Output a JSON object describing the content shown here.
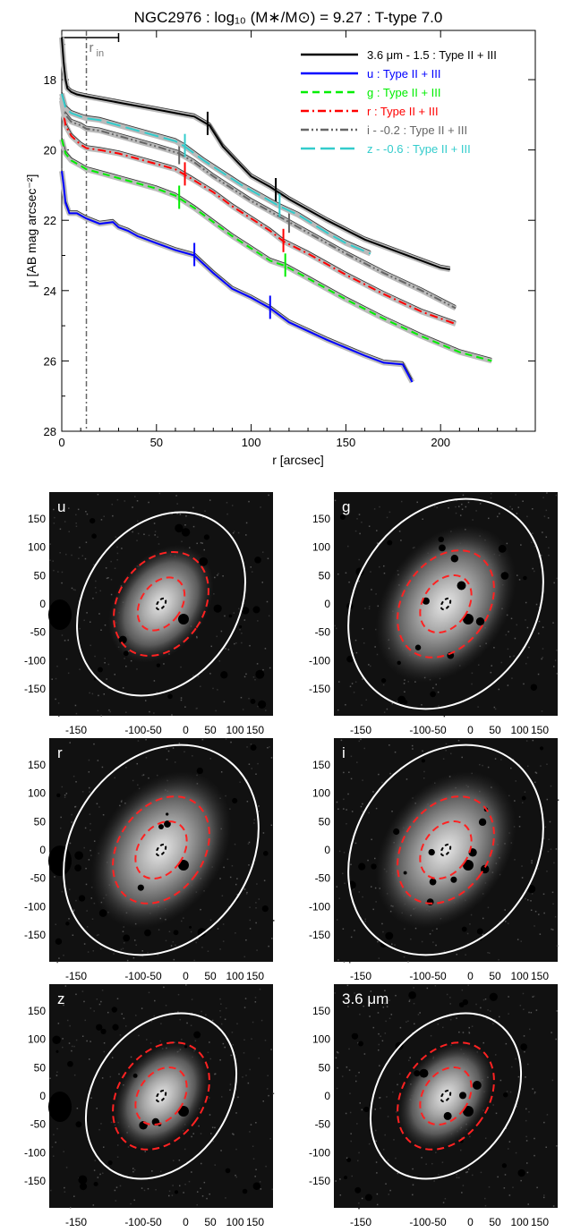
{
  "chart_data": {
    "type": "line",
    "title": "NGC2976 : log₁₀ (M∗/M⊙) = 9.27 : T-type 7.0",
    "xlabel": "r [arcsec]",
    "ylabel": "μ [AB mag arcsec⁻²]",
    "xlim": [
      0,
      250
    ],
    "ylim": [
      28,
      16.6
    ],
    "y_inverted": true,
    "xticks": [
      0,
      50,
      100,
      150,
      200
    ],
    "yticks": [
      18,
      20,
      22,
      24,
      26,
      28
    ],
    "grid": false,
    "legend_placement": "top-right",
    "r_in_label": "r",
    "r_in_subscript": "in",
    "r_in": 13,
    "series": [
      {
        "name": "3.6 μm - 1.5 : Type II + III",
        "color": "#000000",
        "dash": "solid",
        "x": [
          0,
          1,
          2,
          3,
          5,
          8,
          13,
          20,
          30,
          40,
          50,
          60,
          70,
          78,
          85,
          92,
          100,
          110,
          120,
          140,
          160,
          180,
          200,
          205
        ],
        "y": [
          16.8,
          17.5,
          18.0,
          18.25,
          18.35,
          18.42,
          18.48,
          18.55,
          18.65,
          18.75,
          18.85,
          18.95,
          19.05,
          19.3,
          19.9,
          20.3,
          20.75,
          21.05,
          21.4,
          22.0,
          22.55,
          22.95,
          23.35,
          23.4
        ],
        "breaks": [
          77,
          113
        ]
      },
      {
        "name": "u : Type II + III",
        "color": "#0000ff",
        "dash": "solid",
        "x": [
          0,
          1,
          2,
          4,
          8,
          13,
          20,
          27,
          30,
          35,
          40,
          50,
          60,
          70,
          80,
          90,
          100,
          110,
          120,
          140,
          160,
          170,
          180,
          185
        ],
        "y": [
          20.6,
          21.0,
          21.5,
          21.8,
          21.8,
          21.95,
          22.1,
          22.05,
          22.2,
          22.3,
          22.45,
          22.65,
          22.85,
          23.0,
          23.5,
          23.95,
          24.2,
          24.5,
          24.9,
          25.4,
          25.85,
          26.05,
          26.1,
          26.6
        ],
        "breaks": [
          70,
          110
        ]
      },
      {
        "name": "g : Type II + III",
        "color": "#00ee00",
        "dash": "dashed",
        "x": [
          0,
          2,
          5,
          10,
          13,
          20,
          30,
          40,
          50,
          60,
          70,
          80,
          90,
          100,
          110,
          118,
          130,
          150,
          170,
          190,
          210,
          227
        ],
        "y": [
          19.7,
          20.1,
          20.3,
          20.45,
          20.55,
          20.65,
          20.8,
          20.95,
          21.1,
          21.3,
          21.65,
          22.05,
          22.45,
          22.8,
          23.15,
          23.3,
          23.65,
          24.25,
          24.8,
          25.3,
          25.75,
          26.0
        ],
        "breaks": [
          62,
          118
        ]
      },
      {
        "name": "r : Type II + III",
        "color": "#ff0000",
        "dash": "dashdot",
        "x": [
          0,
          2,
          5,
          10,
          13,
          20,
          30,
          40,
          50,
          60,
          68,
          80,
          90,
          100,
          110,
          117,
          130,
          150,
          170,
          190,
          208
        ],
        "y": [
          18.6,
          19.3,
          19.6,
          19.85,
          19.95,
          20.0,
          20.1,
          20.25,
          20.4,
          20.55,
          20.8,
          21.2,
          21.6,
          21.95,
          22.3,
          22.6,
          22.95,
          23.55,
          24.1,
          24.6,
          24.95
        ],
        "breaks": [
          65,
          117
        ]
      },
      {
        "name": "i - -0.2 : Type II + III",
        "color": "#666666",
        "dash": "dashdotdot",
        "x": [
          0,
          2,
          5,
          10,
          13,
          20,
          30,
          40,
          50,
          62,
          70,
          80,
          90,
          100,
          110,
          120,
          130,
          150,
          170,
          190,
          208
        ],
        "y": [
          18.5,
          19.0,
          19.2,
          19.3,
          19.4,
          19.45,
          19.6,
          19.75,
          19.9,
          20.1,
          20.35,
          20.75,
          21.1,
          21.45,
          21.75,
          22.05,
          22.35,
          22.95,
          23.5,
          24.0,
          24.5
        ],
        "breaks": [
          62,
          120
        ]
      },
      {
        "name": "z - -0.6 : Type II + III",
        "color": "#33cccc",
        "dash": "longdash",
        "x": [
          0,
          2,
          5,
          10,
          13,
          20,
          30,
          40,
          50,
          60,
          65,
          75,
          85,
          95,
          105,
          115,
          125,
          140,
          150,
          163
        ],
        "y": [
          18.4,
          18.8,
          18.95,
          19.05,
          19.1,
          19.15,
          19.3,
          19.45,
          19.6,
          19.75,
          19.9,
          20.3,
          20.65,
          21.0,
          21.3,
          21.6,
          21.85,
          22.35,
          22.65,
          22.95
        ],
        "breaks": [
          65,
          115
        ]
      }
    ]
  },
  "image_panels": [
    {
      "label": "u",
      "ticks": [
        "150",
        "100",
        "50",
        "0",
        "-50",
        "-100",
        "-150"
      ],
      "xticks": [
        "-150",
        "-100-50",
        "0",
        "50",
        "100",
        "150"
      ]
    },
    {
      "label": "g",
      "ticks": [
        "150",
        "100",
        "50",
        "0",
        "-50",
        "-100",
        "-150"
      ],
      "xticks": [
        "-150",
        "-100-50",
        "0",
        "50",
        "100",
        "150"
      ]
    },
    {
      "label": "r",
      "ticks": [
        "150",
        "100",
        "50",
        "0",
        "-50",
        "-100",
        "-150"
      ],
      "xticks": [
        "-150",
        "-100-50",
        "0",
        "50",
        "100",
        "150"
      ]
    },
    {
      "label": "i",
      "ticks": [
        "150",
        "100",
        "50",
        "0",
        "-50",
        "-100",
        "-150"
      ],
      "xticks": [
        "-150",
        "-100-50",
        "0",
        "50",
        "100",
        "150"
      ]
    },
    {
      "label": "z",
      "ticks": [
        "150",
        "100",
        "50",
        "0",
        "-50",
        "-100",
        "-150"
      ],
      "xticks": [
        "-150",
        "-100-50",
        "0",
        "50",
        "100",
        "150"
      ]
    },
    {
      "label": "3.6 μm",
      "ticks": [
        "150",
        "100",
        "50",
        "0",
        "-50",
        "-100",
        "-150"
      ],
      "xticks": [
        "-150",
        "-100-50",
        "0",
        "50",
        "100",
        "150"
      ]
    }
  ]
}
